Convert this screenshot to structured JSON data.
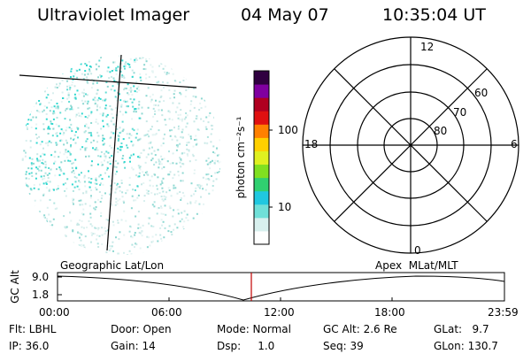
{
  "header": {
    "instrument": "Ultraviolet Imager",
    "date": "04 May 07",
    "time": "10:35:04 UT"
  },
  "colorbar": {
    "unit_label": "photon cm⁻²s⁻¹",
    "ticks": [
      "100",
      "10"
    ],
    "scale": "log",
    "colors": [
      "#ffffff",
      "#d8f0ee",
      "#70e0d8",
      "#20c8e0",
      "#30d070",
      "#80e020",
      "#e0f020",
      "#ffd000",
      "#ff8000",
      "#e01010",
      "#b00020",
      "#8000a0",
      "#300040"
    ]
  },
  "polar_plot": {
    "mlt_labels": [
      "12",
      "18",
      "6",
      "0"
    ],
    "lat_labels": [
      "60",
      "70",
      "80"
    ]
  },
  "timeline": {
    "left_label": "Geographic Lat/Lon",
    "right_label": "Apex  MLat/MLT",
    "y_axis_label": "GC Alt",
    "y_max": "9.0",
    "y_min": "1.8",
    "x_ticks": [
      "00:00",
      "06:00",
      "12:00",
      "18:00",
      "23:59"
    ],
    "current_time_color": "#c00000"
  },
  "info": {
    "flt": "Flt: LBHL",
    "door": "Door: Open",
    "mode": "Mode: Normal",
    "gc_alt": "GC Alt: 2.6 Re",
    "glat": "GLat:   9.7",
    "ip": "IP: 36.0",
    "gain": "Gain: 14",
    "dsp": "Dsp:     1.0",
    "seq": "Seq: 39",
    "glon": "GLon: 130.7"
  }
}
